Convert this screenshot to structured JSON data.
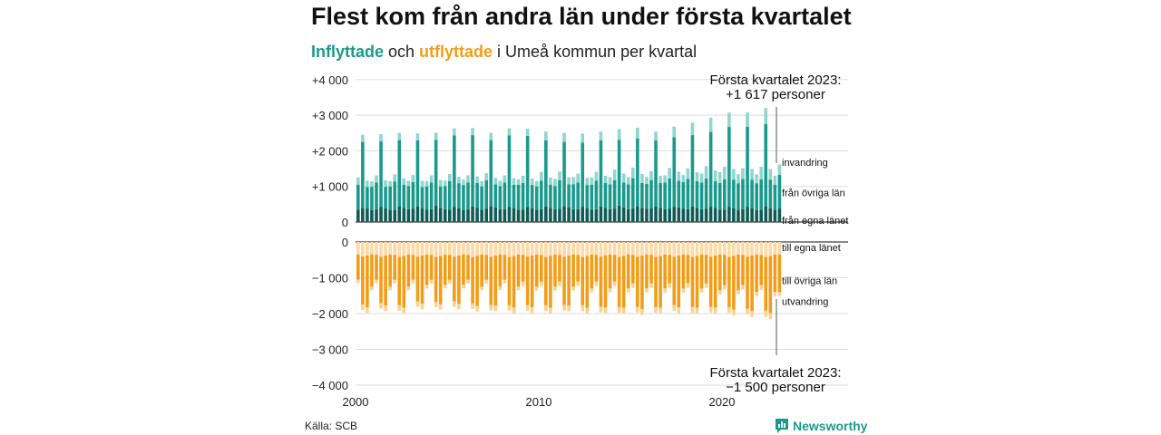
{
  "title": "Flest kom från andra län under första kvartalet",
  "subtitle": {
    "part1": "Inflyttade",
    "part2": " och ",
    "part3": "utflyttade",
    "part4": " i Umeå kommun per kvartal"
  },
  "source": "Källa: SCB",
  "brand": "Newsworthy",
  "colors": {
    "in_egna": "#0f5c55",
    "in_ovriga": "#1a9a8c",
    "in_invandring": "#8fd6cc",
    "out_egna": "#fdd9a6",
    "out_ovriga": "#f29d17",
    "out_utvandring": "#fcd294",
    "grid": "#dddddd"
  },
  "chart_data": [
    {
      "type": "bar",
      "stacked": true,
      "title": "Inflyttade",
      "x_ticks": [
        "2000",
        "2010",
        "2020"
      ],
      "y_ticks": [
        "0",
        "+1 000",
        "+2 000",
        "+3 000",
        "+4 000"
      ],
      "ylim": [
        0,
        4000
      ],
      "period": "2000 Q1 – 2023 Q1",
      "series": [
        {
          "name": "från egna länet",
          "values": [
            350,
            400,
            380,
            340,
            360,
            420,
            390,
            350,
            340,
            450,
            400,
            360,
            370,
            440,
            380,
            350,
            360,
            460,
            400,
            360,
            350,
            430,
            390,
            340,
            360,
            440,
            400,
            350,
            370,
            450,
            410,
            360,
            360,
            430,
            400,
            350,
            350,
            420,
            390,
            350,
            360,
            440,
            400,
            360,
            370,
            450,
            410,
            360,
            360,
            430,
            390,
            350,
            360,
            440,
            400,
            360,
            370,
            460,
            410,
            360,
            380,
            450,
            400,
            370,
            380,
            440,
            400,
            360,
            370,
            430,
            410,
            370,
            360,
            440,
            400,
            360,
            370,
            430,
            400,
            350,
            350,
            420,
            390,
            340,
            360,
            430,
            390,
            340,
            350,
            450,
            390,
            350,
            380
          ]
        },
        {
          "name": "från övriga län",
          "values": [
            700,
            1850,
            600,
            650,
            750,
            1850,
            600,
            650,
            800,
            1850,
            650,
            650,
            750,
            1850,
            600,
            650,
            750,
            1850,
            600,
            650,
            800,
            2000,
            700,
            700,
            750,
            2000,
            700,
            650,
            800,
            1850,
            650,
            650,
            750,
            2000,
            650,
            700,
            750,
            2000,
            650,
            650,
            800,
            1850,
            650,
            650,
            800,
            1800,
            650,
            700,
            750,
            1800,
            650,
            700,
            800,
            1850,
            700,
            700,
            800,
            1850,
            700,
            700,
            850,
            1900,
            700,
            700,
            800,
            1850,
            700,
            750,
            850,
            1950,
            750,
            750,
            850,
            2000,
            750,
            750,
            850,
            2100,
            750,
            750,
            850,
            2250,
            800,
            750,
            850,
            2250,
            800,
            750,
            850,
            2300,
            800,
            700,
            950
          ]
        },
        {
          "name": "invandring",
          "values": [
            200,
            200,
            180,
            150,
            200,
            200,
            180,
            150,
            200,
            200,
            180,
            150,
            200,
            200,
            180,
            150,
            200,
            200,
            180,
            150,
            200,
            200,
            180,
            150,
            200,
            200,
            180,
            150,
            200,
            200,
            180,
            150,
            200,
            200,
            180,
            150,
            200,
            200,
            180,
            150,
            250,
            250,
            200,
            200,
            250,
            250,
            200,
            200,
            250,
            250,
            200,
            200,
            250,
            250,
            200,
            200,
            300,
            300,
            250,
            200,
            300,
            300,
            250,
            200,
            250,
            250,
            200,
            200,
            300,
            300,
            250,
            200,
            300,
            350,
            250,
            250,
            350,
            400,
            300,
            300,
            350,
            400,
            300,
            250,
            300,
            400,
            300,
            250,
            350,
            450,
            300,
            250,
            287
          ]
        }
      ]
    },
    {
      "type": "bar",
      "stacked": true,
      "title": "Utflyttade",
      "y_ticks": [
        "0",
        "−1 000",
        "−2 000",
        "−3 000",
        "−4 000"
      ],
      "ylim": [
        -4000,
        0
      ],
      "series": [
        {
          "name": "till egna länet",
          "values": [
            -350,
            -400,
            -380,
            -350,
            -360,
            -410,
            -380,
            -350,
            -360,
            -420,
            -390,
            -350,
            -360,
            -410,
            -380,
            -350,
            -360,
            -420,
            -390,
            -350,
            -360,
            -410,
            -380,
            -350,
            -360,
            -420,
            -390,
            -350,
            -360,
            -410,
            -380,
            -350,
            -360,
            -420,
            -390,
            -350,
            -360,
            -410,
            -380,
            -350,
            -360,
            -420,
            -390,
            -350,
            -360,
            -410,
            -380,
            -350,
            -360,
            -420,
            -390,
            -350,
            -360,
            -410,
            -380,
            -350,
            -360,
            -420,
            -390,
            -350,
            -360,
            -410,
            -380,
            -350,
            -360,
            -420,
            -390,
            -350,
            -360,
            -410,
            -380,
            -350,
            -360,
            -420,
            -390,
            -350,
            -360,
            -410,
            -380,
            -350,
            -360,
            -420,
            -390,
            -350,
            -360,
            -410,
            -380,
            -350,
            -360,
            -420,
            -390,
            -350,
            -350
          ]
        },
        {
          "name": "till övriga län",
          "values": [
            -700,
            -1350,
            -1450,
            -900,
            -700,
            -1300,
            -1400,
            -900,
            -700,
            -1350,
            -1450,
            -900,
            -700,
            -1250,
            -1350,
            -850,
            -700,
            -1250,
            -1350,
            -850,
            -700,
            -1250,
            -1350,
            -850,
            -700,
            -1300,
            -1400,
            -900,
            -700,
            -1350,
            -1400,
            -900,
            -700,
            -1350,
            -1450,
            -900,
            -750,
            -1350,
            -1450,
            -900,
            -750,
            -1350,
            -1450,
            -900,
            -750,
            -1350,
            -1400,
            -900,
            -750,
            -1350,
            -1450,
            -950,
            -750,
            -1400,
            -1450,
            -950,
            -750,
            -1400,
            -1450,
            -950,
            -800,
            -1400,
            -1500,
            -950,
            -800,
            -1400,
            -1450,
            -950,
            -800,
            -1350,
            -1450,
            -950,
            -800,
            -1400,
            -1450,
            -950,
            -800,
            -1400,
            -1450,
            -1000,
            -850,
            -1400,
            -1500,
            -1000,
            -850,
            -1450,
            -1550,
            -1050,
            -850,
            -1500,
            -1600,
            -1050,
            -1050
          ]
        },
        {
          "name": "utvandring",
          "values": [
            -100,
            -150,
            -150,
            -100,
            -100,
            -150,
            -150,
            -100,
            -100,
            -150,
            -150,
            -100,
            -100,
            -150,
            -150,
            -100,
            -100,
            -150,
            -150,
            -100,
            -100,
            -150,
            -150,
            -100,
            -100,
            -150,
            -150,
            -100,
            -100,
            -150,
            -150,
            -100,
            -100,
            -150,
            -150,
            -100,
            -120,
            -160,
            -160,
            -110,
            -120,
            -160,
            -160,
            -110,
            -120,
            -160,
            -160,
            -110,
            -120,
            -160,
            -160,
            -110,
            -120,
            -160,
            -160,
            -110,
            -120,
            -160,
            -160,
            -110,
            -120,
            -160,
            -160,
            -110,
            -120,
            -160,
            -160,
            -110,
            -120,
            -160,
            -160,
            -110,
            -120,
            -160,
            -160,
            -110,
            -120,
            -160,
            -160,
            -110,
            -120,
            -160,
            -160,
            -110,
            -120,
            -160,
            -160,
            -110,
            -130,
            -170,
            -170,
            -120,
            -100
          ]
        }
      ]
    }
  ],
  "annotations": {
    "top_line1": "Första kvartalet 2023:",
    "top_line2": "+1 617 personer",
    "bottom_line1": "Första kvartalet 2023:",
    "bottom_line2": "−1 500 personer"
  }
}
